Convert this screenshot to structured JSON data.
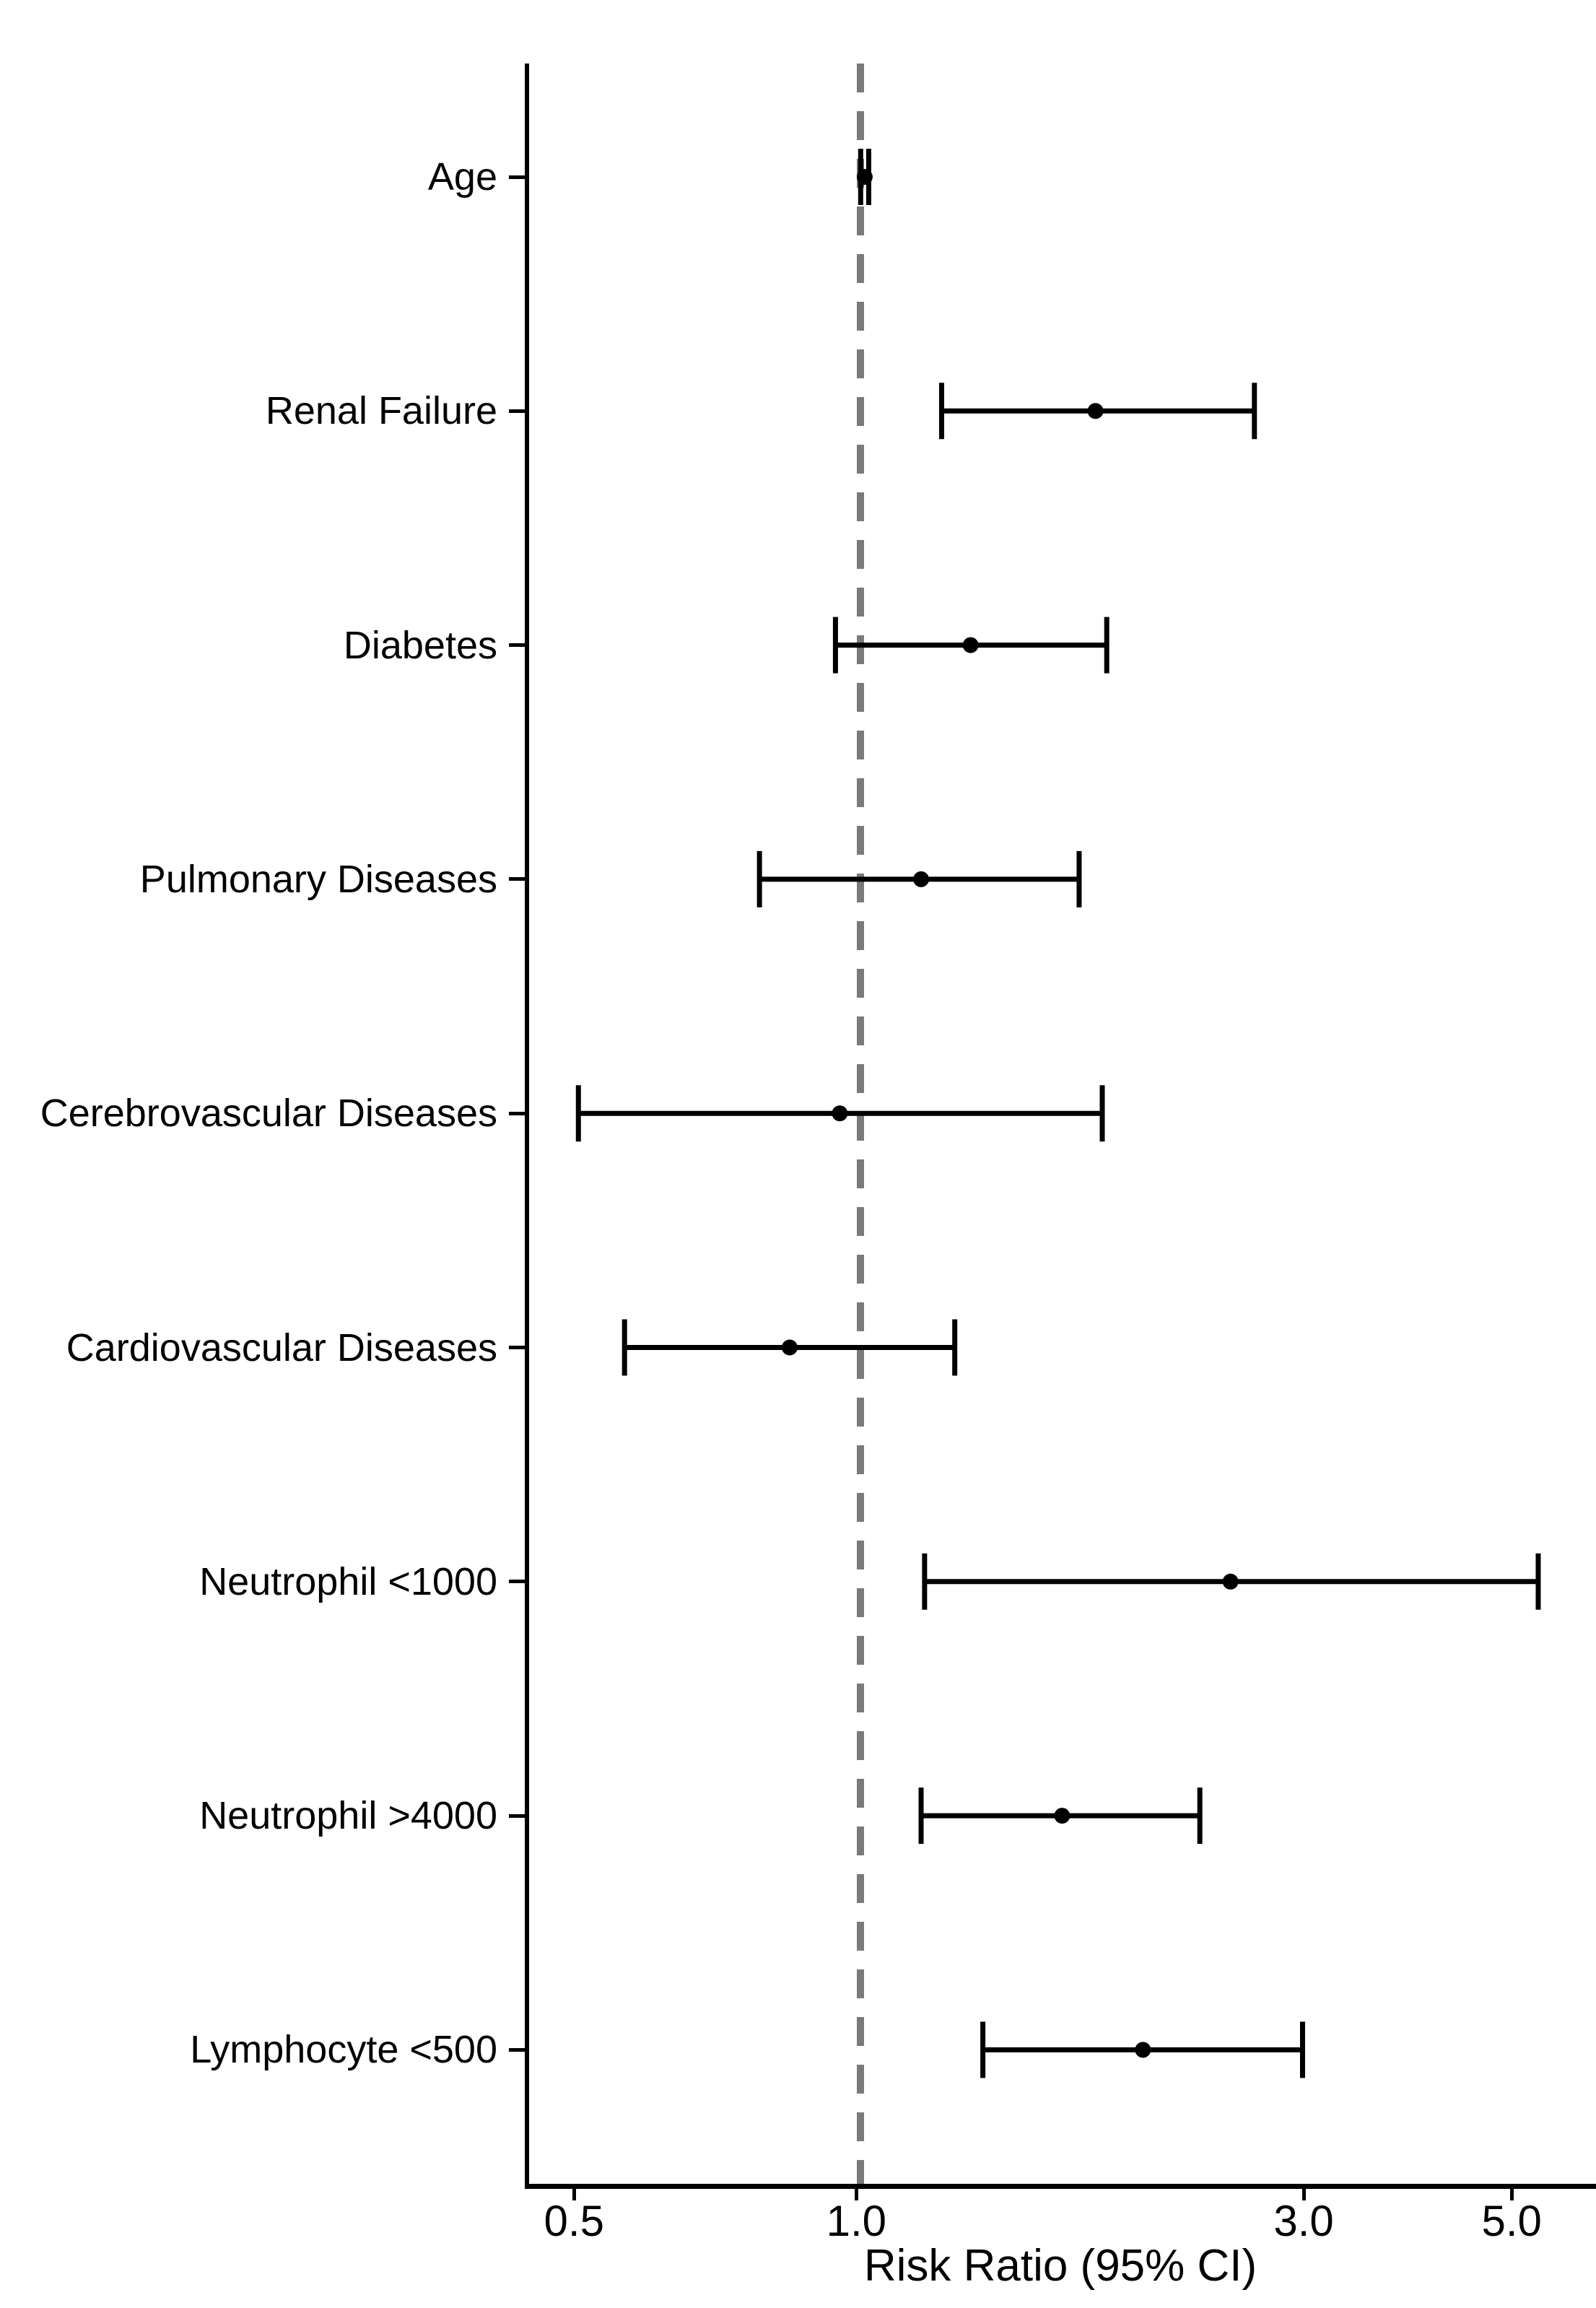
{
  "chart_data": {
    "type": "scatter",
    "subtype": "forest_plot",
    "title": "",
    "xlabel": "Risk Ratio (95% CI)",
    "ylabel": "",
    "x_scale": "log",
    "xlim": [
      0.443,
      6.15
    ],
    "grid": "off",
    "legend": "none",
    "x_ticks": [
      {
        "value": 0.5,
        "label": "0.5"
      },
      {
        "value": 1.0,
        "label": "1.0"
      },
      {
        "value": 3.0,
        "label": "3.0"
      },
      {
        "value": 5.0,
        "label": "5.0"
      }
    ],
    "reference_line": {
      "value": 1.0,
      "style": "dashed",
      "color": "#7a7a7a"
    },
    "rows": [
      {
        "label": "Age",
        "rr": 1.01,
        "ci_low": 1.0,
        "ci_high": 1.02
      },
      {
        "label": "Renal Failure",
        "rr": 1.78,
        "ci_low": 1.22,
        "ci_high": 2.63
      },
      {
        "label": "Diabetes",
        "rr": 1.31,
        "ci_low": 0.94,
        "ci_high": 1.83
      },
      {
        "label": "Pulmonary Diseases",
        "rr": 1.16,
        "ci_low": 0.78,
        "ci_high": 1.71
      },
      {
        "label": "Cerebrovascular Diseases",
        "rr": 0.95,
        "ci_low": 0.5,
        "ci_high": 1.81
      },
      {
        "label": "Cardiovascular Diseases",
        "rr": 0.84,
        "ci_low": 0.56,
        "ci_high": 1.26
      },
      {
        "label": "Neutrophil <1000",
        "rr": 2.48,
        "ci_low": 1.17,
        "ci_high": 5.28
      },
      {
        "label": "Neutrophil >4000",
        "rr": 1.64,
        "ci_low": 1.16,
        "ci_high": 2.3
      },
      {
        "label": "Lymphocyte <500",
        "rr": 2.0,
        "ci_low": 1.35,
        "ci_high": 2.96
      }
    ],
    "colors": {
      "marker": "#000000",
      "axis": "#000000",
      "text": "#000000",
      "reference_line": "#7a7a7a",
      "background": "#ffffff"
    }
  }
}
